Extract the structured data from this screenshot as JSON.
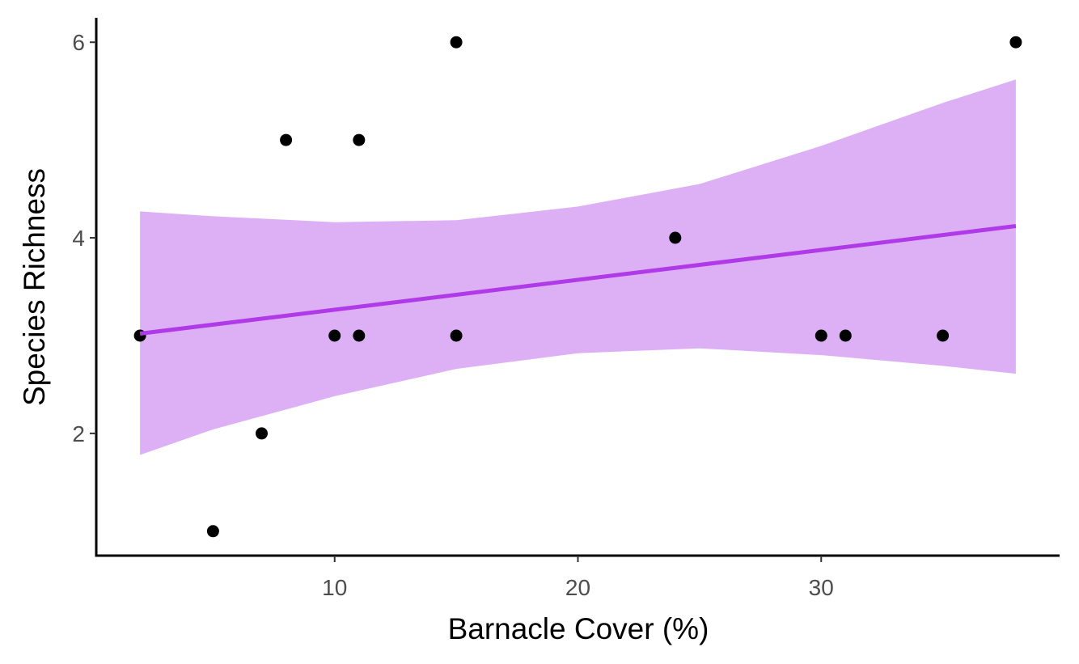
{
  "chart_data": {
    "type": "scatter",
    "xlabel": "Barnacle Cover (%)",
    "ylabel": "Species Richness",
    "xlim": [
      0.2,
      39.8
    ],
    "ylim": [
      0.75,
      6.25
    ],
    "x_ticks": [
      10,
      20,
      30
    ],
    "y_ticks": [
      2,
      4,
      6
    ],
    "points": [
      {
        "x": 2,
        "y": 3
      },
      {
        "x": 5,
        "y": 1
      },
      {
        "x": 7,
        "y": 2
      },
      {
        "x": 8,
        "y": 5
      },
      {
        "x": 10,
        "y": 3
      },
      {
        "x": 11,
        "y": 5
      },
      {
        "x": 11,
        "y": 3
      },
      {
        "x": 15,
        "y": 6
      },
      {
        "x": 15,
        "y": 3
      },
      {
        "x": 24,
        "y": 4
      },
      {
        "x": 30,
        "y": 3
      },
      {
        "x": 31,
        "y": 3
      },
      {
        "x": 35,
        "y": 3
      },
      {
        "x": 38,
        "y": 6
      }
    ],
    "fit": {
      "method": "linear regression",
      "line": [
        {
          "x": 2,
          "y": 3.02
        },
        {
          "x": 38,
          "y": 4.12
        }
      ],
      "confidence_band": [
        {
          "x": 2,
          "lower": 1.78,
          "upper": 4.27
        },
        {
          "x": 5,
          "lower": 2.04,
          "upper": 4.22
        },
        {
          "x": 10,
          "lower": 2.38,
          "upper": 4.16
        },
        {
          "x": 15,
          "lower": 2.66,
          "upper": 4.18
        },
        {
          "x": 20,
          "lower": 2.82,
          "upper": 4.32
        },
        {
          "x": 25,
          "lower": 2.87,
          "upper": 4.55
        },
        {
          "x": 30,
          "lower": 2.8,
          "upper": 4.94
        },
        {
          "x": 35,
          "lower": 2.69,
          "upper": 5.38
        },
        {
          "x": 38,
          "lower": 2.61,
          "upper": 5.62
        }
      ]
    },
    "colors": {
      "points": "#000000",
      "fit_line": "#b03ae8",
      "band": "#c77cf0",
      "band_opacity": 0.6
    },
    "grid": false,
    "legend": "none"
  }
}
